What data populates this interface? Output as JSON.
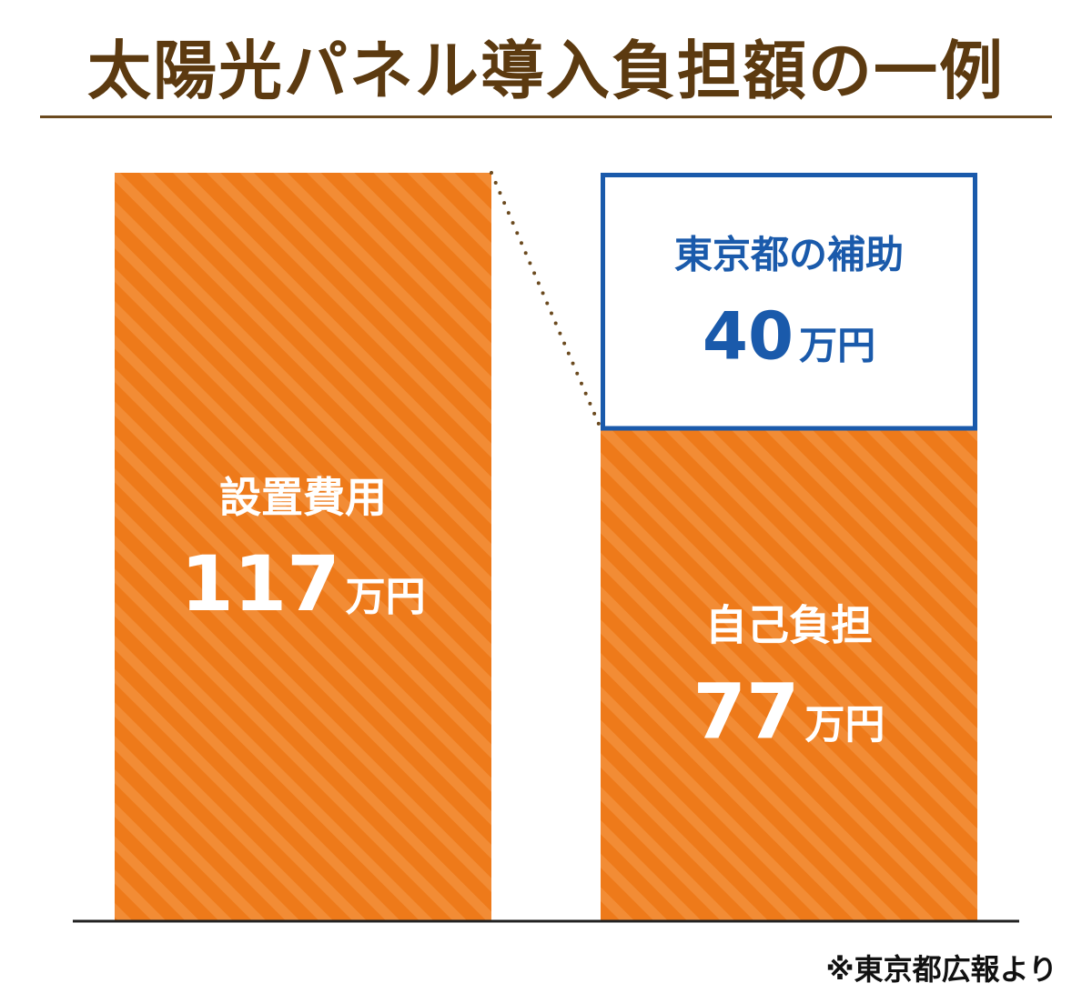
{
  "title": "太陽光パネル導入負担額の一例",
  "source_note": "※東京都広報より",
  "colors": {
    "title": "#5c3a10",
    "bar": "#ee7a1a",
    "bar_stripe": "#f28c35",
    "subsidy_border": "#1a5aab",
    "subsidy_text": "#1a5aab",
    "bar_text": "#ffffff",
    "connector": "#6b4a1f",
    "baseline": "#222222"
  },
  "chart_data": {
    "type": "bar",
    "categories": [
      "設置費用",
      "自己負担"
    ],
    "values": [
      117,
      77
    ],
    "unit": "万円",
    "ylim": [
      0,
      117
    ],
    "segments": [
      {
        "bar": "設置費用",
        "label": "設置費用",
        "value": 117,
        "value_text": "117",
        "unit": "万円",
        "style": "filled"
      },
      {
        "bar": "自己負担",
        "label": "自己負担",
        "value": 77,
        "value_text": "77",
        "unit": "万円",
        "style": "filled"
      },
      {
        "bar": "自己負担",
        "label": "東京都の補助",
        "value": 40,
        "value_text": "40",
        "unit": "万円",
        "style": "outline"
      }
    ],
    "grid": false,
    "legend": "none"
  }
}
